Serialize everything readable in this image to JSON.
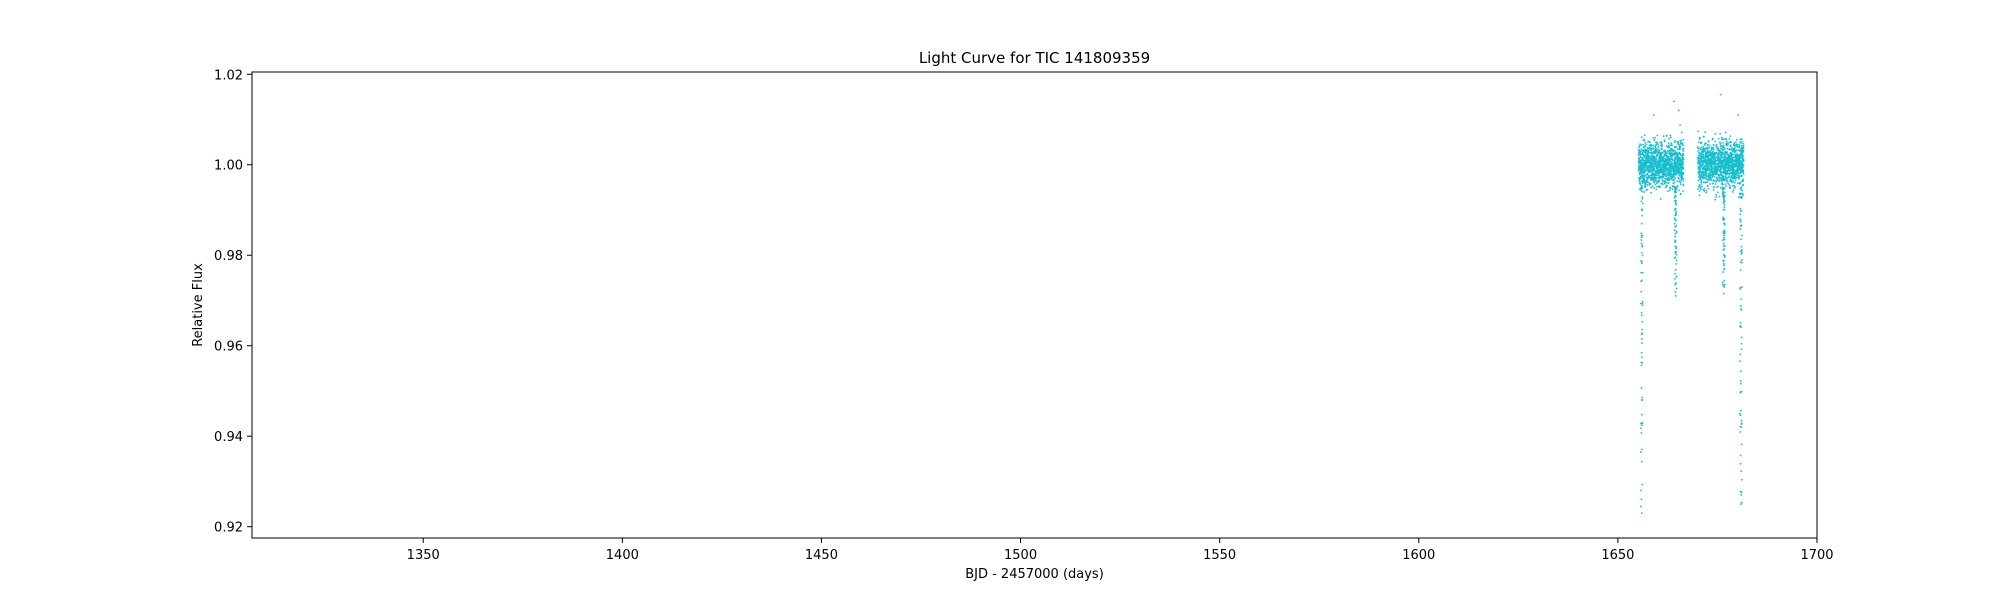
{
  "chart_data": {
    "type": "scatter",
    "title": "Light Curve for TIC 141809359",
    "xlabel": "BJD - 2457000 (days)",
    "ylabel": "Relative Flux",
    "xlim": [
      1307,
      1700
    ],
    "ylim": [
      0.9175,
      1.0205
    ],
    "xticks": [
      1350,
      1400,
      1450,
      1500,
      1550,
      1600,
      1650,
      1700
    ],
    "yticks": [
      0.92,
      0.94,
      0.96,
      0.98,
      1.0,
      1.02
    ],
    "ytick_labels": [
      "0.92",
      "0.94",
      "0.96",
      "0.98",
      "1.00",
      "1.02"
    ],
    "grid": false,
    "point_color": "#17becf",
    "series": [
      {
        "segments": [
          {
            "x_start": 1655.2,
            "x_end": 1666.5,
            "median": 1.0,
            "scatter": 0.0025
          },
          {
            "x_start": 1670.1,
            "x_end": 1681.6,
            "median": 1.0,
            "scatter": 0.0025
          }
        ],
        "outliers": [
          {
            "x": 1664.1,
            "y": 1.014
          },
          {
            "x": 1665.3,
            "y": 1.012
          },
          {
            "x": 1675.8,
            "y": 1.0155
          },
          {
            "x": 1659.0,
            "y": 1.011
          },
          {
            "x": 1680.2,
            "y": 1.011
          }
        ],
        "dips": [
          {
            "x": 1656.0,
            "y_min": 0.923
          },
          {
            "x": 1664.5,
            "y_min": 0.971
          },
          {
            "x": 1676.6,
            "y_min": 0.9715
          },
          {
            "x": 1680.9,
            "y_min": 0.925
          }
        ]
      }
    ]
  }
}
